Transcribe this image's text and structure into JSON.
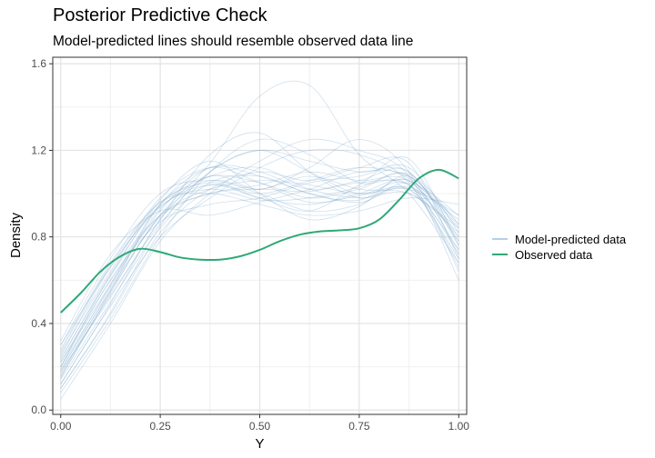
{
  "chart_data": {
    "type": "line",
    "title": "Posterior Predictive Check",
    "subtitle": "Model-predicted lines should resemble observed data line",
    "xlabel": "Y",
    "ylabel": "Density",
    "xlim": [
      -0.02,
      1.02
    ],
    "ylim": [
      -0.02,
      1.63
    ],
    "x_ticks": [
      0.0,
      0.25,
      0.5,
      0.75,
      1.0
    ],
    "x_tick_labels": [
      "0.00",
      "0.25",
      "0.50",
      "0.75",
      "1.00"
    ],
    "y_ticks": [
      0.0,
      0.4,
      0.8,
      1.2,
      1.6
    ],
    "y_tick_labels": [
      "0.0",
      "0.4",
      "0.8",
      "1.2",
      "1.6"
    ],
    "grid": true,
    "legend_position": "right",
    "legend": [
      {
        "label": "Model-predicted data",
        "color": "#6e9fc8"
      },
      {
        "label": "Observed data",
        "color": "#2fa877"
      }
    ],
    "observed": {
      "name": "Observed data",
      "color": "#2fa877",
      "x": [
        0.0,
        0.05,
        0.1,
        0.15,
        0.2,
        0.25,
        0.3,
        0.35,
        0.4,
        0.45,
        0.5,
        0.55,
        0.6,
        0.65,
        0.7,
        0.75,
        0.8,
        0.85,
        0.9,
        0.95,
        1.0
      ],
      "y": [
        0.45,
        0.54,
        0.64,
        0.71,
        0.745,
        0.73,
        0.705,
        0.695,
        0.695,
        0.71,
        0.74,
        0.78,
        0.81,
        0.825,
        0.83,
        0.84,
        0.88,
        0.97,
        1.07,
        1.11,
        1.07
      ]
    },
    "predicted": {
      "name": "Model-predicted data",
      "color": "#6e9fc8",
      "x": [
        0.0,
        0.125,
        0.25,
        0.375,
        0.5,
        0.625,
        0.75,
        0.875,
        1.0
      ],
      "draws": [
        [
          0.15,
          0.55,
          0.95,
          1.08,
          1.05,
          0.98,
          1.02,
          1.08,
          0.72
        ],
        [
          0.2,
          0.62,
          0.9,
          1.0,
          1.02,
          1.01,
          1.05,
          1.04,
          0.8
        ],
        [
          0.1,
          0.45,
          0.85,
          1.1,
          1.2,
          1.15,
          1.1,
          1.1,
          0.78
        ],
        [
          0.25,
          0.66,
          0.94,
          1.04,
          0.98,
          0.95,
          1.0,
          1.06,
          0.85
        ],
        [
          0.18,
          0.52,
          0.88,
          1.18,
          1.28,
          1.1,
          0.98,
          1.02,
          0.7
        ],
        [
          0.3,
          0.7,
          1.0,
          1.06,
          1.0,
          0.92,
          0.95,
          1.05,
          0.9
        ],
        [
          0.12,
          0.48,
          0.8,
          0.98,
          1.12,
          1.2,
          1.18,
          1.05,
          0.66
        ],
        [
          0.22,
          0.58,
          0.92,
          1.12,
          1.1,
          1.02,
          1.06,
          1.1,
          0.76
        ],
        [
          0.05,
          0.4,
          0.78,
          1.0,
          1.15,
          1.25,
          1.2,
          1.08,
          0.6
        ],
        [
          0.28,
          0.68,
          0.96,
          1.0,
          0.95,
          0.9,
          0.92,
          0.98,
          0.95
        ],
        [
          0.16,
          0.56,
          0.9,
          1.14,
          1.45,
          1.5,
          1.18,
          1.0,
          0.68
        ],
        [
          0.2,
          0.6,
          0.87,
          0.95,
          0.98,
          1.05,
          1.08,
          1.12,
          0.82
        ],
        [
          0.14,
          0.5,
          0.84,
          1.05,
          1.08,
          1.0,
          0.97,
          1.06,
          0.74
        ],
        [
          0.26,
          0.64,
          0.98,
          1.12,
          1.05,
          0.96,
          0.99,
          1.03,
          0.88
        ],
        [
          0.1,
          0.44,
          0.82,
          1.02,
          1.1,
          1.06,
          1.12,
          1.14,
          0.7
        ],
        [
          0.2,
          0.57,
          0.93,
          1.06,
          1.02,
          1.08,
          1.02,
          1.0,
          0.84
        ],
        [
          0.32,
          0.72,
          0.92,
          0.9,
          0.96,
          1.02,
          1.1,
          1.08,
          0.86
        ],
        [
          0.17,
          0.53,
          0.86,
          1.1,
          1.2,
          1.1,
          1.0,
          1.04,
          0.72
        ],
        [
          0.24,
          0.62,
          0.97,
          1.15,
          1.0,
          0.88,
          0.94,
          1.08,
          0.8
        ],
        [
          0.12,
          0.49,
          0.88,
          1.08,
          1.02,
          1.12,
          1.25,
          1.1,
          0.64
        ],
        [
          0.22,
          0.6,
          0.9,
          1.02,
          1.06,
          1.04,
          1.0,
          1.02,
          0.9
        ],
        [
          0.15,
          0.54,
          0.9,
          1.04,
          0.98,
          0.92,
          1.04,
          1.16,
          0.76
        ],
        [
          0.3,
          0.66,
          0.95,
          1.08,
          1.12,
          1.02,
          0.98,
          1.0,
          0.82
        ],
        [
          0.19,
          0.55,
          0.89,
          1.0,
          1.04,
          1.1,
          1.06,
          1.06,
          0.78
        ],
        [
          0.08,
          0.42,
          0.8,
          1.1,
          1.25,
          1.18,
          1.05,
          1.04,
          0.68
        ],
        [
          0.23,
          0.63,
          0.94,
          1.02,
          0.97,
          0.98,
          1.03,
          1.09,
          0.86
        ],
        [
          0.18,
          0.58,
          0.95,
          1.12,
          1.08,
          1.0,
          0.96,
          1.02,
          0.74
        ],
        [
          0.27,
          0.67,
          0.96,
          1.05,
          1.0,
          1.06,
          1.12,
          1.07,
          0.84
        ]
      ]
    }
  }
}
